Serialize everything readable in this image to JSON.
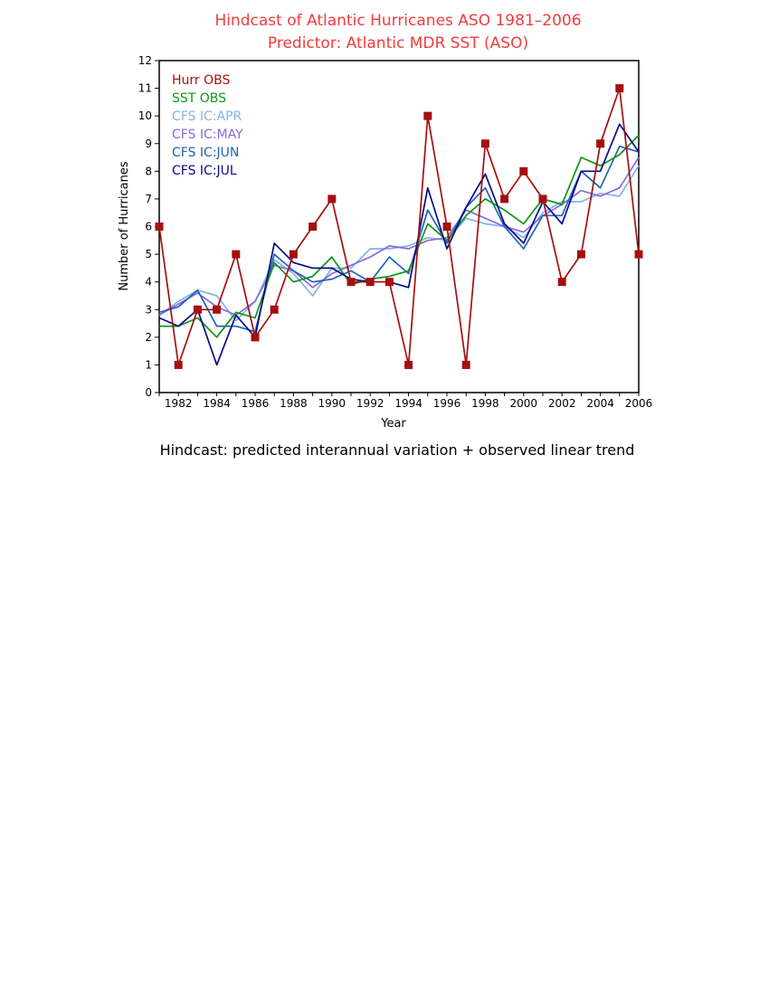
{
  "chart_data": {
    "type": "line",
    "title": "Hindcast of Atlantic Hurricanes   ASO 1981–2006",
    "subtitle": "Predictor: Atlantic MDR SST (ASO)",
    "xlabel": "Year",
    "ylabel": "Number of Hurricanes",
    "footnote": "Hindcast: predicted interannual variation + observed linear trend",
    "xlim": [
      1981,
      2006
    ],
    "ylim": [
      0,
      12
    ],
    "x_ticks": [
      1982,
      1984,
      1986,
      1988,
      1990,
      1992,
      1994,
      1996,
      1998,
      2000,
      2002,
      2004,
      2006
    ],
    "y_ticks": [
      0,
      1,
      2,
      3,
      4,
      5,
      6,
      7,
      8,
      9,
      10,
      11,
      12
    ],
    "grid": false,
    "legend_position": "top-left",
    "colors": {
      "title": "#f03c3c",
      "axis": "#000000"
    },
    "x": [
      1981,
      1982,
      1983,
      1984,
      1985,
      1986,
      1987,
      1988,
      1989,
      1990,
      1991,
      1992,
      1993,
      1994,
      1995,
      1996,
      1997,
      1998,
      1999,
      2000,
      2001,
      2002,
      2003,
      2004,
      2005,
      2006
    ],
    "series": [
      {
        "name": "CFS IC:APR",
        "color": "#7fb4ec",
        "values": [
          2.8,
          3.3,
          3.7,
          3.5,
          2.6,
          3.3,
          4.8,
          4.3,
          3.5,
          4.5,
          4.5,
          5.2,
          5.2,
          5.3,
          5.6,
          5.5,
          6.3,
          6.1,
          6.0,
          5.6,
          6.5,
          6.9,
          6.9,
          7.2,
          7.1,
          8.2
        ]
      },
      {
        "name": "CFS IC:MAY",
        "color": "#8a6ad8",
        "values": [
          2.8,
          3.2,
          3.6,
          3.1,
          2.8,
          3.3,
          4.6,
          4.4,
          3.8,
          4.3,
          4.6,
          4.9,
          5.3,
          5.2,
          5.5,
          5.6,
          6.6,
          6.3,
          6.0,
          5.8,
          6.4,
          6.8,
          7.3,
          7.1,
          7.4,
          8.5
        ]
      },
      {
        "name": "CFS IC:JUN",
        "color": "#1e64b4",
        "values": [
          2.9,
          3.1,
          3.7,
          2.4,
          2.4,
          2.2,
          5.0,
          4.4,
          4.0,
          4.1,
          4.4,
          4.0,
          4.9,
          4.3,
          6.6,
          5.4,
          6.7,
          7.4,
          6.0,
          5.2,
          6.4,
          6.4,
          8.0,
          7.4,
          8.9,
          8.7
        ]
      },
      {
        "name": "SST OBS",
        "color": "#0f9614",
        "values": [
          2.4,
          2.4,
          2.7,
          2.0,
          2.9,
          2.7,
          4.7,
          4.0,
          4.2,
          4.9,
          3.9,
          4.1,
          4.2,
          4.4,
          6.1,
          5.5,
          6.4,
          7.0,
          6.6,
          6.1,
          7.0,
          6.8,
          8.5,
          8.2,
          8.6,
          9.3
        ]
      },
      {
        "name": "CFS IC:JUL",
        "color": "#0a0a8c",
        "values": [
          2.7,
          2.4,
          3.0,
          1.0,
          2.8,
          2.0,
          5.4,
          4.7,
          4.5,
          4.5,
          4.1,
          4.0,
          4.0,
          3.8,
          7.4,
          5.2,
          6.7,
          7.9,
          6.1,
          5.4,
          6.9,
          6.1,
          8.0,
          8.0,
          9.7,
          8.7
        ]
      },
      {
        "name": "Hurr OBS",
        "color": "#a50f0f",
        "marker": "square",
        "values": [
          6,
          1,
          3,
          3,
          5,
          2,
          3,
          5,
          6,
          7,
          4,
          4,
          4,
          1,
          10,
          6,
          1,
          9,
          7,
          8,
          7,
          4,
          5,
          9,
          11,
          5
        ]
      }
    ],
    "legend_order": [
      "Hurr OBS",
      "SST OBS",
      "CFS IC:APR",
      "CFS IC:MAY",
      "CFS IC:JUN",
      "CFS IC:JUL"
    ]
  }
}
